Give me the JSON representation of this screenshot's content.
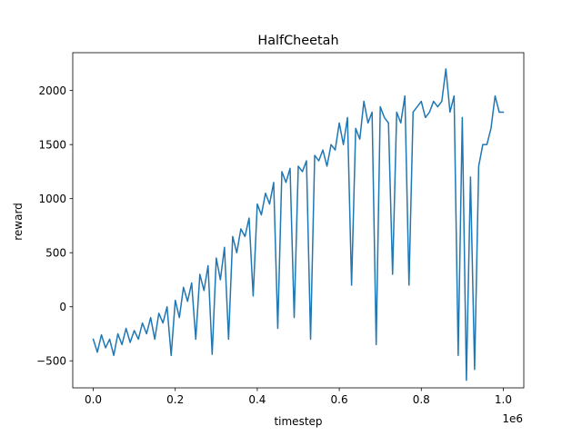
{
  "chart_data": {
    "type": "line",
    "title": "HalfCheetah",
    "xlabel": "timestep",
    "ylabel": "reward",
    "x_offset_label": "1e6",
    "xlim": [
      -0.05,
      1.05
    ],
    "ylim": [
      -750,
      2350
    ],
    "x_ticks": [
      0.0,
      0.2,
      0.4,
      0.6,
      0.8,
      1.0
    ],
    "x_tick_labels": [
      "0.0",
      "0.2",
      "0.4",
      "0.6",
      "0.8",
      "1.0"
    ],
    "y_ticks": [
      -500,
      0,
      500,
      1000,
      1500,
      2000
    ],
    "y_tick_labels": [
      "−500",
      "0",
      "500",
      "1000",
      "1500",
      "2000"
    ],
    "grid": false,
    "series": [
      {
        "color": "#1f77b4",
        "x": [
          0.0,
          0.01,
          0.02,
          0.03,
          0.04,
          0.05,
          0.06,
          0.07,
          0.08,
          0.09,
          0.1,
          0.11,
          0.12,
          0.13,
          0.14,
          0.15,
          0.16,
          0.17,
          0.18,
          0.19,
          0.2,
          0.21,
          0.22,
          0.23,
          0.24,
          0.25,
          0.26,
          0.27,
          0.28,
          0.29,
          0.3,
          0.31,
          0.32,
          0.33,
          0.34,
          0.35,
          0.36,
          0.37,
          0.38,
          0.39,
          0.4,
          0.41,
          0.42,
          0.43,
          0.44,
          0.45,
          0.46,
          0.47,
          0.48,
          0.49,
          0.5,
          0.51,
          0.52,
          0.53,
          0.54,
          0.55,
          0.56,
          0.57,
          0.58,
          0.59,
          0.6,
          0.61,
          0.62,
          0.63,
          0.64,
          0.65,
          0.66,
          0.67,
          0.68,
          0.69,
          0.7,
          0.71,
          0.72,
          0.73,
          0.74,
          0.75,
          0.76,
          0.77,
          0.78,
          0.79,
          0.8,
          0.81,
          0.82,
          0.83,
          0.84,
          0.85,
          0.86,
          0.87,
          0.88,
          0.89,
          0.9,
          0.91,
          0.92,
          0.93,
          0.94,
          0.95,
          0.96,
          0.97,
          0.98,
          0.99,
          1.0
        ],
        "y": [
          -300,
          -420,
          -260,
          -380,
          -300,
          -450,
          -250,
          -350,
          -200,
          -330,
          -220,
          -300,
          -150,
          -250,
          -100,
          -300,
          -60,
          -150,
          0,
          -450,
          60,
          -100,
          180,
          50,
          220,
          -300,
          300,
          150,
          380,
          -440,
          450,
          250,
          550,
          -300,
          650,
          500,
          720,
          650,
          820,
          100,
          950,
          850,
          1050,
          950,
          1150,
          -200,
          1250,
          1150,
          1280,
          -100,
          1300,
          1250,
          1350,
          -300,
          1400,
          1350,
          1450,
          1300,
          1500,
          1450,
          1700,
          1500,
          1750,
          200,
          1650,
          1550,
          1900,
          1700,
          1800,
          -350,
          1850,
          1750,
          1700,
          300,
          1800,
          1700,
          1950,
          200,
          1800,
          1850,
          1900,
          1750,
          1800,
          1900,
          1850,
          1900,
          2200,
          1800,
          1950,
          -450,
          1750,
          -680,
          1200,
          -580,
          1300,
          1500,
          1500,
          1650,
          1950,
          1800,
          1800
        ]
      }
    ]
  }
}
